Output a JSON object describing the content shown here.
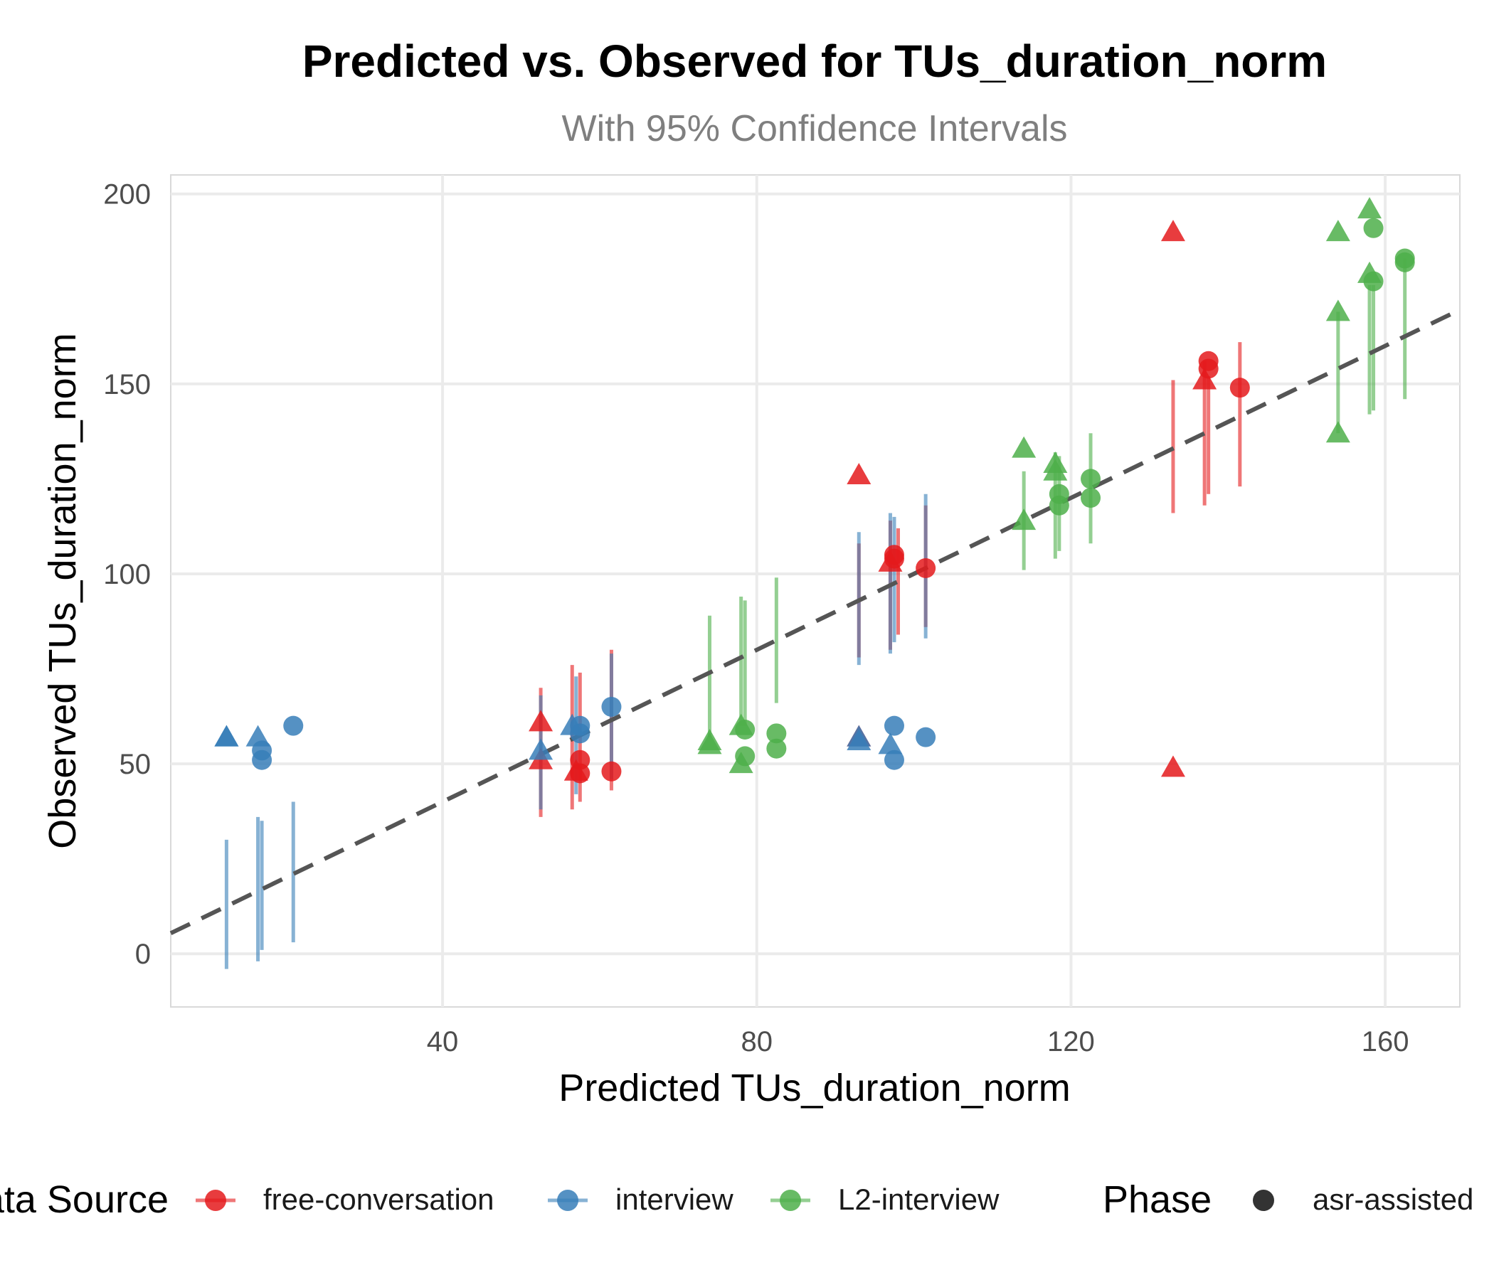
{
  "chart_data": {
    "type": "scatter",
    "title": "Predicted vs. Observed for TUs_duration_norm",
    "subtitle": "With 95% Confidence Intervals",
    "xlabel": "Predicted TUs_duration_norm",
    "ylabel": "Observed TUs_duration_norm",
    "xlim": [
      5.4,
      169.5
    ],
    "ylim": [
      -14,
      205
    ],
    "xticks": [
      "40",
      "80",
      "120",
      "160"
    ],
    "yticks": [
      "0",
      "50",
      "100",
      "150",
      "200"
    ],
    "grid": true,
    "reference_line": {
      "type": "identity",
      "style": "dashed",
      "color": "#555555"
    },
    "legend": {
      "placement": "bottom",
      "source_title": "Data Source",
      "phase_title": "Phase",
      "phase_labels": [
        "asr-assisted"
      ]
    },
    "colors": {
      "free-conversation": "#E41A1C",
      "interview": "#377EB8",
      "L2-interview": "#4DAF4A"
    },
    "series": [
      {
        "name": "free-conversation",
        "points": [
          {
            "x": 52.5,
            "y": 61,
            "shape": "triangle"
          },
          {
            "x": 52.5,
            "y": 51,
            "shape": "triangle"
          },
          {
            "x": 57,
            "y": 48,
            "shape": "triangle"
          },
          {
            "x": 57.5,
            "y": 51,
            "shape": "circle"
          },
          {
            "x": 57.5,
            "y": 47.5,
            "shape": "circle"
          },
          {
            "x": 61.5,
            "y": 48,
            "shape": "circle"
          },
          {
            "x": 93,
            "y": 126,
            "shape": "triangle"
          },
          {
            "x": 93,
            "y": 57,
            "shape": "triangle"
          },
          {
            "x": 97,
            "y": 103,
            "shape": "triangle"
          },
          {
            "x": 97.5,
            "y": 105,
            "shape": "circle"
          },
          {
            "x": 97.5,
            "y": 104,
            "shape": "circle"
          },
          {
            "x": 101.5,
            "y": 101.5,
            "shape": "circle"
          },
          {
            "x": 133,
            "y": 190,
            "shape": "triangle"
          },
          {
            "x": 133,
            "y": 49,
            "shape": "triangle"
          },
          {
            "x": 137,
            "y": 151,
            "shape": "triangle"
          },
          {
            "x": 137.5,
            "y": 156,
            "shape": "circle"
          },
          {
            "x": 137.5,
            "y": 154,
            "shape": "circle"
          },
          {
            "x": 141.5,
            "y": 149,
            "shape": "circle"
          }
        ],
        "intervals": [
          {
            "x": 52.5,
            "low": 36,
            "high": 70
          },
          {
            "x": 56.5,
            "low": 38,
            "high": 76
          },
          {
            "x": 57.5,
            "low": 40,
            "high": 74
          },
          {
            "x": 61.5,
            "low": 43,
            "high": 80
          },
          {
            "x": 93,
            "low": 78,
            "high": 108
          },
          {
            "x": 97,
            "low": 80,
            "high": 114
          },
          {
            "x": 98,
            "low": 84,
            "high": 112
          },
          {
            "x": 101.5,
            "low": 86,
            "high": 118
          },
          {
            "x": 133,
            "low": 116,
            "high": 151
          },
          {
            "x": 137,
            "low": 118,
            "high": 156
          },
          {
            "x": 137.5,
            "low": 121,
            "high": 152
          },
          {
            "x": 141.5,
            "low": 123,
            "high": 161
          }
        ]
      },
      {
        "name": "interview",
        "points": [
          {
            "x": 12.5,
            "y": 57,
            "shape": "triangle"
          },
          {
            "x": 12.5,
            "y": 57,
            "shape": "triangle"
          },
          {
            "x": 16.5,
            "y": 57,
            "shape": "triangle"
          },
          {
            "x": 17,
            "y": 53.5,
            "shape": "circle"
          },
          {
            "x": 17,
            "y": 51,
            "shape": "circle"
          },
          {
            "x": 21,
            "y": 60,
            "shape": "circle"
          },
          {
            "x": 52.5,
            "y": 53.5,
            "shape": "triangle"
          },
          {
            "x": 56.5,
            "y": 60,
            "shape": "triangle"
          },
          {
            "x": 57.5,
            "y": 60,
            "shape": "circle"
          },
          {
            "x": 57.5,
            "y": 58,
            "shape": "circle"
          },
          {
            "x": 61.5,
            "y": 65,
            "shape": "circle"
          },
          {
            "x": 93,
            "y": 57,
            "shape": "triangle"
          },
          {
            "x": 93,
            "y": 56,
            "shape": "triangle"
          },
          {
            "x": 97,
            "y": 55,
            "shape": "triangle"
          },
          {
            "x": 97.5,
            "y": 60,
            "shape": "circle"
          },
          {
            "x": 97.5,
            "y": 51,
            "shape": "circle"
          },
          {
            "x": 101.5,
            "y": 57,
            "shape": "circle"
          }
        ],
        "intervals": [
          {
            "x": 12.5,
            "low": -4,
            "high": 30
          },
          {
            "x": 16.5,
            "low": -2,
            "high": 36
          },
          {
            "x": 17,
            "low": 1,
            "high": 35
          },
          {
            "x": 21,
            "low": 3,
            "high": 40
          },
          {
            "x": 52.5,
            "low": 38,
            "high": 68
          },
          {
            "x": 57,
            "low": 42,
            "high": 73
          },
          {
            "x": 61.5,
            "low": 46,
            "high": 79
          },
          {
            "x": 93,
            "low": 76,
            "high": 111
          },
          {
            "x": 97,
            "low": 79,
            "high": 116
          },
          {
            "x": 97.5,
            "low": 82,
            "high": 115
          },
          {
            "x": 101.5,
            "low": 83,
            "high": 121
          }
        ]
      },
      {
        "name": "L2-interview",
        "points": [
          {
            "x": 74,
            "y": 56,
            "shape": "triangle"
          },
          {
            "x": 74,
            "y": 55,
            "shape": "triangle"
          },
          {
            "x": 78,
            "y": 60,
            "shape": "triangle"
          },
          {
            "x": 78,
            "y": 50,
            "shape": "triangle"
          },
          {
            "x": 78.5,
            "y": 59,
            "shape": "circle"
          },
          {
            "x": 78.5,
            "y": 52,
            "shape": "circle"
          },
          {
            "x": 82.5,
            "y": 58,
            "shape": "circle"
          },
          {
            "x": 82.5,
            "y": 54,
            "shape": "circle"
          },
          {
            "x": 114,
            "y": 133,
            "shape": "triangle"
          },
          {
            "x": 114,
            "y": 114,
            "shape": "triangle"
          },
          {
            "x": 118,
            "y": 129,
            "shape": "triangle"
          },
          {
            "x": 118,
            "y": 127,
            "shape": "triangle"
          },
          {
            "x": 118.5,
            "y": 121,
            "shape": "circle"
          },
          {
            "x": 118.5,
            "y": 118,
            "shape": "circle"
          },
          {
            "x": 122.5,
            "y": 125,
            "shape": "circle"
          },
          {
            "x": 122.5,
            "y": 120,
            "shape": "circle"
          },
          {
            "x": 154,
            "y": 190,
            "shape": "triangle"
          },
          {
            "x": 154,
            "y": 169,
            "shape": "triangle"
          },
          {
            "x": 154,
            "y": 137,
            "shape": "triangle"
          },
          {
            "x": 158,
            "y": 196,
            "shape": "triangle"
          },
          {
            "x": 158,
            "y": 179,
            "shape": "triangle"
          },
          {
            "x": 158.5,
            "y": 191,
            "shape": "circle"
          },
          {
            "x": 158.5,
            "y": 177,
            "shape": "circle"
          },
          {
            "x": 162.5,
            "y": 183,
            "shape": "circle"
          },
          {
            "x": 162.5,
            "y": 182,
            "shape": "circle"
          }
        ],
        "intervals": [
          {
            "x": 74,
            "low": 57,
            "high": 89
          },
          {
            "x": 78,
            "low": 60,
            "high": 94
          },
          {
            "x": 78.5,
            "low": 60,
            "high": 93
          },
          {
            "x": 82.5,
            "low": 66,
            "high": 99
          },
          {
            "x": 114,
            "low": 101,
            "high": 127
          },
          {
            "x": 118,
            "low": 104,
            "high": 132
          },
          {
            "x": 118.5,
            "low": 106,
            "high": 131
          },
          {
            "x": 122.5,
            "low": 108,
            "high": 137
          },
          {
            "x": 154,
            "low": 137,
            "high": 169
          },
          {
            "x": 158,
            "low": 142,
            "high": 176
          },
          {
            "x": 158.5,
            "low": 143,
            "high": 176
          },
          {
            "x": 162.5,
            "low": 146,
            "high": 183
          }
        ]
      }
    ]
  }
}
